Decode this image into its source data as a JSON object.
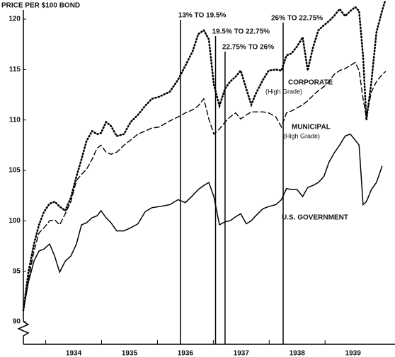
{
  "chart_data": {
    "type": "line",
    "y_label": "PRICE PER $100 BOND",
    "xlim": [
      1933.6,
      1940.1
    ],
    "xticks": [
      1934,
      1935,
      1936,
      1937,
      1938,
      1939
    ],
    "ylim": [
      87.75,
      121.9
    ],
    "yticks": [
      90,
      95,
      100,
      105,
      110,
      115,
      120
    ],
    "x": [
      1933.6,
      1933.69,
      1933.79,
      1933.88,
      1933.97,
      1934.07,
      1934.16,
      1934.25,
      1934.35,
      1934.45,
      1934.55,
      1934.64,
      1934.73,
      1934.83,
      1934.92,
      1934.99,
      1935.08,
      1935.17,
      1935.27,
      1935.4,
      1935.52,
      1935.65,
      1935.78,
      1935.9,
      1936.03,
      1936.22,
      1936.37,
      1936.5,
      1936.63,
      1936.73,
      1936.83,
      1936.92,
      1937.01,
      1937.11,
      1937.21,
      1937.3,
      1937.4,
      1937.49,
      1937.59,
      1937.68,
      1937.76,
      1937.89,
      1937.99,
      1938.12,
      1938.22,
      1938.31,
      1938.4,
      1938.5,
      1938.6,
      1938.69,
      1938.78,
      1938.88,
      1938.98,
      1939.07,
      1939.16,
      1939.26,
      1939.36,
      1939.45,
      1939.54,
      1939.61,
      1939.68,
      1939.74,
      1939.83,
      1939.92,
      1940.02,
      1940.08
    ],
    "series": [
      {
        "name": "CORPORATE",
        "note": "(High Grade)",
        "color": "#000000",
        "style": "dotted",
        "values": [
          91.1,
          94.9,
          97.7,
          99.6,
          100.9,
          101.7,
          101.9,
          101.4,
          101.0,
          102.3,
          104.4,
          106.1,
          107.9,
          108.9,
          108.6,
          108.7,
          109.8,
          109.4,
          108.4,
          108.6,
          109.8,
          110.5,
          111.4,
          112.1,
          112.3,
          112.8,
          114.0,
          115.4,
          116.8,
          118.5,
          118.9,
          118.0,
          113.5,
          111.4,
          113.1,
          113.8,
          114.3,
          114.9,
          113.1,
          111.5,
          112.6,
          114.0,
          114.9,
          115.0,
          114.9,
          116.4,
          116.6,
          117.3,
          118.2,
          114.9,
          117.1,
          118.9,
          119.4,
          119.8,
          120.3,
          121.0,
          120.3,
          120.8,
          121.2,
          120.8,
          116.3,
          110.0,
          113.8,
          118.7,
          120.8,
          121.9
        ]
      },
      {
        "name": "MUNICIPAL",
        "note": "(High Grade)",
        "color": "#000000",
        "style": "dashed",
        "values": [
          91.1,
          94.2,
          97.0,
          98.8,
          99.3,
          100.0,
          100.1,
          99.6,
          100.7,
          101.9,
          104.0,
          104.6,
          105.1,
          106.1,
          107.2,
          107.5,
          106.8,
          106.6,
          106.8,
          107.5,
          108.0,
          108.6,
          108.9,
          109.2,
          109.3,
          109.9,
          110.3,
          110.7,
          111.0,
          111.4,
          112.1,
          110.1,
          108.6,
          109.1,
          109.8,
          110.3,
          110.7,
          110.1,
          110.5,
          110.8,
          110.8,
          110.8,
          110.7,
          110.3,
          109.3,
          110.7,
          110.9,
          111.2,
          111.5,
          111.9,
          112.4,
          112.9,
          113.3,
          113.8,
          114.5,
          114.9,
          115.1,
          115.4,
          115.7,
          114.9,
          112.1,
          110.3,
          112.8,
          113.8,
          114.5,
          114.8
        ]
      },
      {
        "name": "U.S. GOVERNMENT",
        "color": "#000000",
        "style": "solid",
        "values": [
          91.1,
          93.9,
          96.0,
          97.0,
          97.2,
          97.7,
          96.5,
          94.9,
          96.0,
          96.5,
          97.7,
          99.6,
          99.8,
          100.3,
          100.5,
          101.0,
          100.3,
          99.8,
          99.0,
          99.0,
          99.3,
          99.7,
          100.9,
          101.3,
          101.4,
          101.6,
          102.1,
          101.8,
          102.5,
          103.1,
          103.5,
          103.8,
          102.4,
          99.6,
          99.9,
          100.0,
          100.4,
          100.7,
          99.7,
          100.0,
          100.5,
          101.2,
          101.4,
          101.6,
          102.1,
          103.2,
          103.1,
          103.1,
          102.4,
          103.3,
          103.5,
          103.8,
          104.4,
          105.8,
          106.7,
          107.5,
          108.4,
          108.6,
          108.0,
          107.5,
          101.6,
          101.9,
          103.1,
          103.8,
          105.4,
          null
        ]
      }
    ],
    "annotations": [
      {
        "label": "13% TO 19.5%",
        "x": 1936.41
      },
      {
        "label": "19.5% TO 22.75%",
        "x": 1937.04
      },
      {
        "label": "22.75% TO 26%",
        "x": 1937.21
      },
      {
        "label": "26% TO 22.75%",
        "x": 1938.25
      }
    ]
  }
}
